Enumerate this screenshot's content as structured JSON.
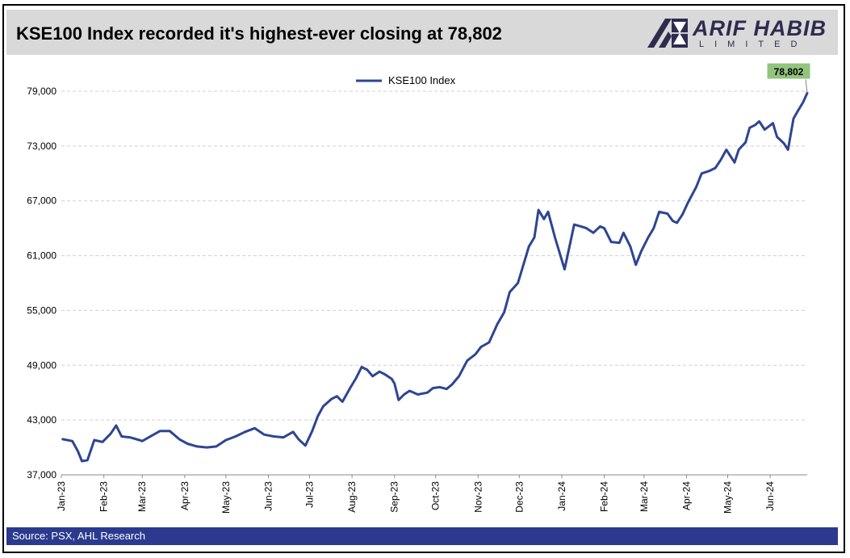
{
  "header": {
    "title": "KSE100 Index recorded it's highest-ever closing at 78,802"
  },
  "logo": {
    "main": "ARIF HABIB",
    "sub": "LIMITED",
    "icon": "arif-habib-logo-icon"
  },
  "footer": {
    "source": "Source: PSX, AHL Research"
  },
  "colors": {
    "line": "#2e4593",
    "header_bg": "#d9d9d9",
    "footer_bg": "#2b3a8f",
    "callout_bg": "#92c47d",
    "logo": "#2f2b4f"
  },
  "chart_data": {
    "type": "line",
    "title": "",
    "xlabel": "",
    "ylabel": "",
    "grid": true,
    "legend_position": "top-center",
    "ylim": [
      37000,
      79000
    ],
    "yticks": [
      37000,
      43000,
      49000,
      55000,
      61000,
      67000,
      73000,
      79000
    ],
    "ytick_labels": [
      "37,000",
      "43,000",
      "49,000",
      "55,000",
      "61,000",
      "67,000",
      "73,000",
      "79,000"
    ],
    "xlim": [
      "2023-01-01",
      "2024-06-28"
    ],
    "xtick_labels": [
      "Jan-23",
      "Feb-23",
      "Mar-23",
      "Apr-23",
      "May-23",
      "Jun-23",
      "Jul-23",
      "Aug-23",
      "Sep-23",
      "Oct-23",
      "Nov-23",
      "Dec-23",
      "Jan-24",
      "Feb-24",
      "Mar-24",
      "Apr-24",
      "May-24",
      "Jun-24"
    ],
    "xtick_dates": [
      "2023-01-01",
      "2023-02-01",
      "2023-03-01",
      "2023-04-01",
      "2023-05-01",
      "2023-06-01",
      "2023-07-01",
      "2023-08-01",
      "2023-09-01",
      "2023-10-01",
      "2023-11-01",
      "2023-12-01",
      "2024-01-01",
      "2024-02-01",
      "2024-03-01",
      "2024-04-01",
      "2024-05-01",
      "2024-06-01"
    ],
    "annotation": {
      "label": "78,802",
      "date": "2024-06-28",
      "value": 78802
    },
    "series": [
      {
        "name": "KSE100 Index",
        "points": [
          [
            "2023-01-02",
            40900
          ],
          [
            "2023-01-09",
            40700
          ],
          [
            "2023-01-13",
            39600
          ],
          [
            "2023-01-16",
            38500
          ],
          [
            "2023-01-20",
            38600
          ],
          [
            "2023-01-25",
            40800
          ],
          [
            "2023-01-31",
            40600
          ],
          [
            "2023-02-06",
            41500
          ],
          [
            "2023-02-10",
            42400
          ],
          [
            "2023-02-14",
            41200
          ],
          [
            "2023-02-20",
            41100
          ],
          [
            "2023-02-27",
            40800
          ],
          [
            "2023-03-01",
            40700
          ],
          [
            "2023-03-08",
            41300
          ],
          [
            "2023-03-14",
            41800
          ],
          [
            "2023-03-21",
            41800
          ],
          [
            "2023-03-28",
            40900
          ],
          [
            "2023-04-03",
            40400
          ],
          [
            "2023-04-10",
            40100
          ],
          [
            "2023-04-17",
            40000
          ],
          [
            "2023-04-24",
            40100
          ],
          [
            "2023-05-01",
            40800
          ],
          [
            "2023-05-08",
            41200
          ],
          [
            "2023-05-15",
            41700
          ],
          [
            "2023-05-22",
            42100
          ],
          [
            "2023-05-29",
            41400
          ],
          [
            "2023-06-05",
            41200
          ],
          [
            "2023-06-12",
            41100
          ],
          [
            "2023-06-19",
            41700
          ],
          [
            "2023-06-23",
            40900
          ],
          [
            "2023-06-28",
            40200
          ],
          [
            "2023-07-03",
            41800
          ],
          [
            "2023-07-07",
            43400
          ],
          [
            "2023-07-11",
            44500
          ],
          [
            "2023-07-17",
            45300
          ],
          [
            "2023-07-21",
            45600
          ],
          [
            "2023-07-25",
            45000
          ],
          [
            "2023-07-31",
            46600
          ],
          [
            "2023-08-04",
            47600
          ],
          [
            "2023-08-08",
            48800
          ],
          [
            "2023-08-12",
            48500
          ],
          [
            "2023-08-16",
            47800
          ],
          [
            "2023-08-21",
            48300
          ],
          [
            "2023-08-25",
            48000
          ],
          [
            "2023-08-30",
            47500
          ],
          [
            "2023-09-01",
            47000
          ],
          [
            "2023-09-04",
            45200
          ],
          [
            "2023-09-08",
            45800
          ],
          [
            "2023-09-12",
            46200
          ],
          [
            "2023-09-18",
            45800
          ],
          [
            "2023-09-25",
            46000
          ],
          [
            "2023-09-29",
            46500
          ],
          [
            "2023-10-04",
            46600
          ],
          [
            "2023-10-09",
            46400
          ],
          [
            "2023-10-13",
            46900
          ],
          [
            "2023-10-18",
            47800
          ],
          [
            "2023-10-24",
            49500
          ],
          [
            "2023-10-30",
            50200
          ],
          [
            "2023-11-03",
            51000
          ],
          [
            "2023-11-09",
            51500
          ],
          [
            "2023-11-15",
            53500
          ],
          [
            "2023-11-20",
            54800
          ],
          [
            "2023-11-24",
            57000
          ],
          [
            "2023-11-30",
            58000
          ],
          [
            "2023-12-04",
            60000
          ],
          [
            "2023-12-08",
            62000
          ],
          [
            "2023-12-12",
            63000
          ],
          [
            "2023-12-15",
            66000
          ],
          [
            "2023-12-19",
            65000
          ],
          [
            "2023-12-22",
            65800
          ],
          [
            "2023-12-27",
            63000
          ],
          [
            "2024-01-01",
            60500
          ],
          [
            "2024-01-03",
            59500
          ],
          [
            "2024-01-08",
            63000
          ],
          [
            "2024-01-10",
            64400
          ],
          [
            "2024-01-15",
            64200
          ],
          [
            "2024-01-19",
            64000
          ],
          [
            "2024-01-24",
            63500
          ],
          [
            "2024-01-29",
            64200
          ],
          [
            "2024-02-01",
            64000
          ],
          [
            "2024-02-06",
            62500
          ],
          [
            "2024-02-12",
            62400
          ],
          [
            "2024-02-15",
            63500
          ],
          [
            "2024-02-20",
            62000
          ],
          [
            "2024-02-24",
            60000
          ],
          [
            "2024-02-28",
            61500
          ],
          [
            "2024-03-04",
            63000
          ],
          [
            "2024-03-08",
            64000
          ],
          [
            "2024-03-12",
            65800
          ],
          [
            "2024-03-18",
            65600
          ],
          [
            "2024-03-22",
            64800
          ],
          [
            "2024-03-25",
            64600
          ],
          [
            "2024-03-29",
            65500
          ],
          [
            "2024-04-02",
            66800
          ],
          [
            "2024-04-08",
            68500
          ],
          [
            "2024-04-12",
            70000
          ],
          [
            "2024-04-18",
            70300
          ],
          [
            "2024-04-22",
            70600
          ],
          [
            "2024-04-26",
            71500
          ],
          [
            "2024-04-30",
            72600
          ],
          [
            "2024-05-06",
            71200
          ],
          [
            "2024-05-09",
            72600
          ],
          [
            "2024-05-14",
            73400
          ],
          [
            "2024-05-17",
            75000
          ],
          [
            "2024-05-21",
            75300
          ],
          [
            "2024-05-24",
            75700
          ],
          [
            "2024-05-28",
            74800
          ],
          [
            "2024-06-03",
            75500
          ],
          [
            "2024-06-06",
            74000
          ],
          [
            "2024-06-11",
            73300
          ],
          [
            "2024-06-14",
            72600
          ],
          [
            "2024-06-18",
            76000
          ],
          [
            "2024-06-21",
            76800
          ],
          [
            "2024-06-25",
            77800
          ],
          [
            "2024-06-28",
            78802
          ]
        ]
      }
    ]
  }
}
